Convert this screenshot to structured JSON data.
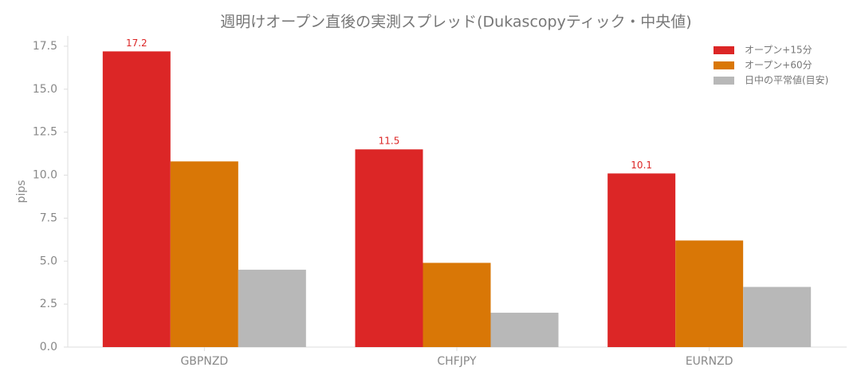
{
  "chart_data": {
    "type": "bar",
    "title": "週明けオープン直後の実測スプレッド(Dukascopyティック・中央値)",
    "y_label": "pips",
    "categories": [
      "GBPNZD",
      "CHFJPY",
      "EURNZD"
    ],
    "series": [
      {
        "name": "オープン+15分",
        "color": "#dc2626",
        "values": [
          17.2,
          11.5,
          10.1
        ],
        "data_labels": true
      },
      {
        "name": "オープン+60分",
        "color": "#d97706",
        "values": [
          10.8,
          4.9,
          6.2
        ]
      },
      {
        "name": "日中の平常値(目安)",
        "color": "#b8b8b8",
        "values": [
          4.5,
          2.0,
          3.5
        ]
      }
    ],
    "ylim": [
      0,
      18.1
    ],
    "yticks": [
      {
        "value": 0,
        "label": "0.0"
      },
      2.5,
      {
        "value": 5,
        "label": "5.0"
      },
      7.5,
      {
        "value": 10,
        "label": "10.0"
      },
      12.5,
      {
        "value": 15,
        "label": "15.0"
      },
      17.5
    ],
    "grid": false,
    "legend": "upper-right"
  }
}
